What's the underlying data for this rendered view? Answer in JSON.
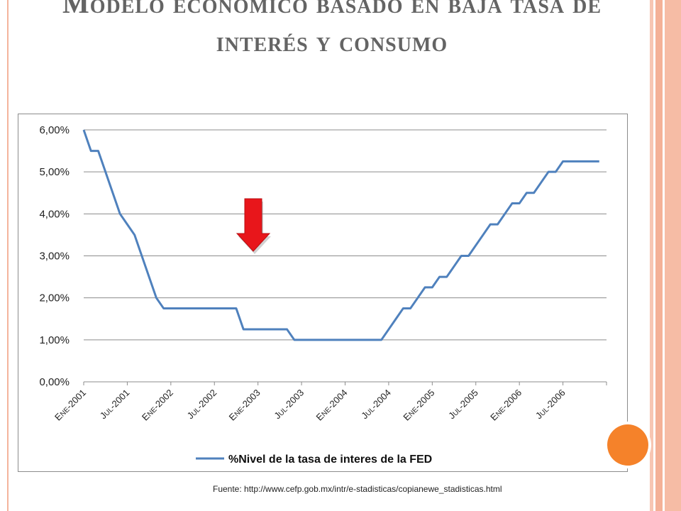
{
  "slide": {
    "title": "Modelo económico basado en baja tasa de interés y consumo",
    "source": "Fuente: http://www.cefp.gob.mx/intr/e-stadisticas/copianewe_stadisticas.html"
  },
  "colors": {
    "line": "#4f81bd",
    "arrow": "#e8161b",
    "accent_circle": "#f5822a",
    "grid": "#8c8c8c"
  },
  "chart_data": {
    "type": "line",
    "title": "",
    "xlabel": "",
    "ylabel": "",
    "ylim": [
      0,
      6
    ],
    "y_ticks": [
      "0,00%",
      "1,00%",
      "2,00%",
      "3,00%",
      "4,00%",
      "5,00%",
      "6,00%"
    ],
    "x_tick_labels": [
      "Ene-2001",
      "Jul-2001",
      "Ene-2002",
      "Jul-2002",
      "Ene-2003",
      "Jul-2003",
      "Ene-2004",
      "Jul-2004",
      "Ene-2005",
      "Jul-2005",
      "Ene-2006",
      "Jul-2006"
    ],
    "legend": "top-bottom-center",
    "grid": true,
    "series": [
      {
        "name": "%Nivel de la tasa de interes de la FED",
        "x": [
          "2001-01",
          "2001-02",
          "2001-03",
          "2001-04",
          "2001-05",
          "2001-06",
          "2001-07",
          "2001-08",
          "2001-09",
          "2001-10",
          "2001-11",
          "2001-12",
          "2002-01",
          "2002-02",
          "2002-03",
          "2002-04",
          "2002-05",
          "2002-06",
          "2002-07",
          "2002-08",
          "2002-09",
          "2002-10",
          "2002-11",
          "2002-12",
          "2003-01",
          "2003-02",
          "2003-03",
          "2003-04",
          "2003-05",
          "2003-06",
          "2003-07",
          "2003-08",
          "2003-09",
          "2003-10",
          "2003-11",
          "2003-12",
          "2004-01",
          "2004-02",
          "2004-03",
          "2004-04",
          "2004-05",
          "2004-06",
          "2004-07",
          "2004-08",
          "2004-09",
          "2004-10",
          "2004-11",
          "2004-12",
          "2005-01",
          "2005-02",
          "2005-03",
          "2005-04",
          "2005-05",
          "2005-06",
          "2005-07",
          "2005-08",
          "2005-09",
          "2005-10",
          "2005-11",
          "2005-12",
          "2006-01",
          "2006-02",
          "2006-03",
          "2006-04",
          "2006-05",
          "2006-06",
          "2006-07",
          "2006-08",
          "2006-09",
          "2006-10",
          "2006-11",
          "2006-12"
        ],
        "values": [
          6.0,
          5.5,
          5.5,
          5.0,
          4.5,
          4.0,
          3.75,
          3.5,
          3.0,
          2.5,
          2.0,
          1.75,
          1.75,
          1.75,
          1.75,
          1.75,
          1.75,
          1.75,
          1.75,
          1.75,
          1.75,
          1.75,
          1.25,
          1.25,
          1.25,
          1.25,
          1.25,
          1.25,
          1.25,
          1.0,
          1.0,
          1.0,
          1.0,
          1.0,
          1.0,
          1.0,
          1.0,
          1.0,
          1.0,
          1.0,
          1.0,
          1.0,
          1.25,
          1.5,
          1.75,
          1.75,
          2.0,
          2.25,
          2.25,
          2.5,
          2.5,
          2.75,
          3.0,
          3.0,
          3.25,
          3.5,
          3.75,
          3.75,
          4.0,
          4.25,
          4.25,
          4.5,
          4.5,
          4.75,
          5.0,
          5.0,
          5.25,
          5.25,
          5.25,
          5.25,
          5.25,
          5.25
        ]
      }
    ]
  }
}
